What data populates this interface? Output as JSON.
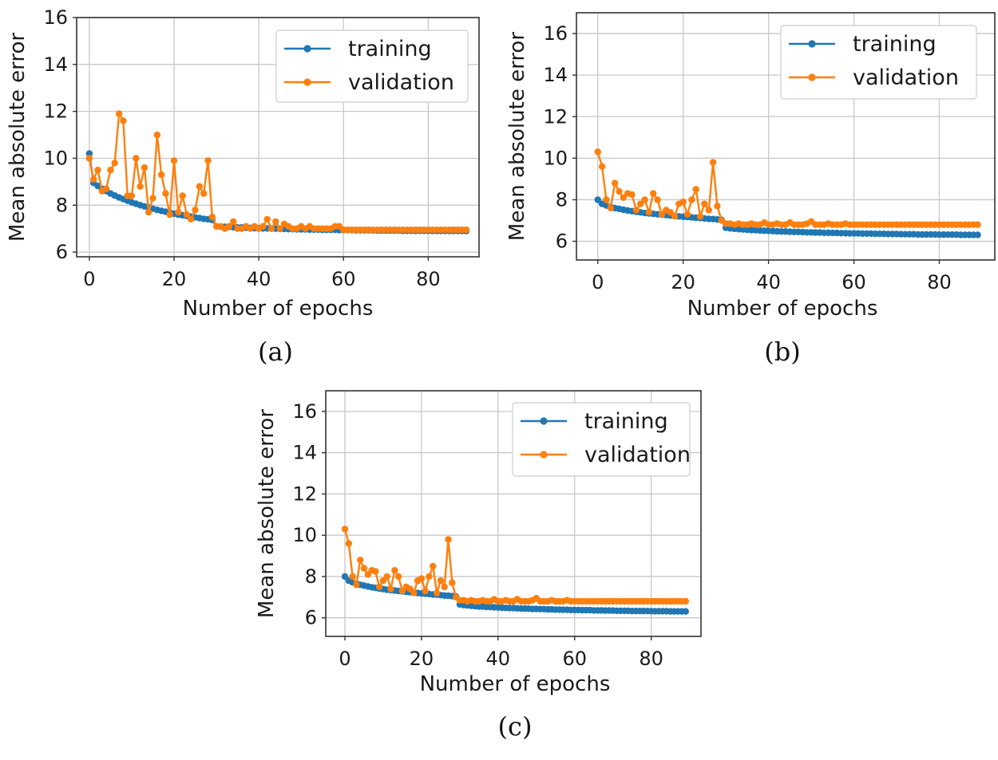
{
  "colors": {
    "training": "#1f77b4",
    "validation": "#ff7f0e"
  },
  "chart_data": [
    {
      "type": "line",
      "caption": "(a)",
      "xlabel": "Number of epochs",
      "ylabel": "Mean absolute error",
      "xlim": [
        -3,
        92
      ],
      "ylim": [
        5.8,
        16
      ],
      "xticks": [
        0,
        20,
        40,
        60,
        80
      ],
      "yticks": [
        6,
        8,
        10,
        12,
        14,
        16
      ],
      "legend": "top-right",
      "series": [
        {
          "name": "training",
          "color": "#1f77b4",
          "x_start": 0,
          "values": [
            10.2,
            8.95,
            8.82,
            8.7,
            8.6,
            8.5,
            8.41,
            8.33,
            8.26,
            8.19,
            8.12,
            8.06,
            8.0,
            7.95,
            7.9,
            7.85,
            7.8,
            7.76,
            7.72,
            7.68,
            7.64,
            7.6,
            7.57,
            7.54,
            7.51,
            7.48,
            7.45,
            7.42,
            7.4,
            7.37,
            7.1,
            7.09,
            7.08,
            7.07,
            7.06,
            7.05,
            7.05,
            7.04,
            7.03,
            7.02,
            7.02,
            7.01,
            7.01,
            7.0,
            7.0,
            6.99,
            6.99,
            6.98,
            6.98,
            6.97,
            6.97,
            6.97,
            6.96,
            6.96,
            6.96,
            6.95,
            6.95,
            6.95,
            6.95,
            6.94,
            6.94,
            6.94,
            6.94,
            6.93,
            6.93,
            6.93,
            6.93,
            6.93,
            6.92,
            6.92,
            6.92,
            6.92,
            6.92,
            6.92,
            6.91,
            6.91,
            6.91,
            6.91,
            6.91,
            6.91,
            6.91,
            6.9,
            6.9,
            6.9,
            6.9,
            6.9,
            6.9,
            6.9,
            6.9,
            6.9
          ]
        },
        {
          "name": "validation",
          "color": "#ff7f0e",
          "x_start": 0,
          "values": [
            10.0,
            9.1,
            9.5,
            8.6,
            8.7,
            9.5,
            9.8,
            11.9,
            11.6,
            8.4,
            8.4,
            10.0,
            8.8,
            9.6,
            7.7,
            8.3,
            11.0,
            9.3,
            8.5,
            7.6,
            9.9,
            7.7,
            8.4,
            7.6,
            7.4,
            7.8,
            8.8,
            8.5,
            9.9,
            7.5,
            7.1,
            7.1,
            7.0,
            7.1,
            7.3,
            7.0,
            7.0,
            7.1,
            7.0,
            7.1,
            7.0,
            7.1,
            7.4,
            7.0,
            7.3,
            7.0,
            7.2,
            7.1,
            7.0,
            7.0,
            7.1,
            7.0,
            7.1,
            7.0,
            7.0,
            7.0,
            7.0,
            7.0,
            7.1,
            7.1,
            6.95,
            6.95,
            6.95,
            6.95,
            6.95,
            6.95,
            6.95,
            6.95,
            6.95,
            6.95,
            6.95,
            6.95,
            6.95,
            6.95,
            6.95,
            6.95,
            6.95,
            6.95,
            6.95,
            6.95,
            6.95,
            6.95,
            6.95,
            6.95,
            6.95,
            6.95,
            6.95,
            6.95,
            6.95,
            6.95
          ]
        }
      ]
    },
    {
      "type": "line",
      "caption": "(b)",
      "xlabel": "Number of epochs",
      "ylabel": "Mean absolute error",
      "xlim": [
        -5,
        93
      ],
      "ylim": [
        5.1,
        17
      ],
      "xticks": [
        0,
        20,
        40,
        60,
        80
      ],
      "yticks": [
        6,
        8,
        10,
        12,
        14,
        16
      ],
      "legend": "top-right",
      "series": [
        {
          "name": "training",
          "color": "#1f77b4",
          "x_start": 0,
          "values": [
            8.0,
            7.8,
            7.72,
            7.66,
            7.6,
            7.56,
            7.52,
            7.48,
            7.45,
            7.42,
            7.39,
            7.36,
            7.34,
            7.32,
            7.3,
            7.28,
            7.26,
            7.24,
            7.22,
            7.2,
            7.18,
            7.17,
            7.15,
            7.13,
            7.12,
            7.1,
            7.08,
            7.07,
            7.05,
            7.03,
            6.65,
            6.62,
            6.6,
            6.58,
            6.57,
            6.55,
            6.54,
            6.53,
            6.52,
            6.51,
            6.5,
            6.49,
            6.48,
            6.47,
            6.47,
            6.46,
            6.45,
            6.45,
            6.44,
            6.43,
            6.43,
            6.42,
            6.42,
            6.41,
            6.41,
            6.4,
            6.4,
            6.39,
            6.39,
            6.38,
            6.38,
            6.38,
            6.37,
            6.37,
            6.37,
            6.36,
            6.36,
            6.36,
            6.35,
            6.35,
            6.35,
            6.34,
            6.34,
            6.34,
            6.34,
            6.33,
            6.33,
            6.33,
            6.33,
            6.33,
            6.32,
            6.32,
            6.32,
            6.32,
            6.32,
            6.31,
            6.31,
            6.31,
            6.31,
            6.31
          ]
        },
        {
          "name": "validation",
          "color": "#ff7f0e",
          "x_start": 0,
          "values": [
            10.3,
            9.6,
            8.0,
            7.6,
            8.8,
            8.4,
            8.1,
            8.3,
            8.25,
            7.5,
            7.8,
            8.0,
            7.4,
            8.3,
            8.0,
            7.3,
            7.5,
            7.4,
            7.2,
            7.8,
            7.9,
            7.3,
            8.0,
            8.5,
            7.2,
            7.8,
            7.5,
            9.8,
            7.7,
            7.0,
            6.85,
            6.85,
            6.8,
            6.85,
            6.8,
            6.8,
            6.85,
            6.8,
            6.8,
            6.9,
            6.8,
            6.8,
            6.85,
            6.8,
            6.8,
            6.9,
            6.8,
            6.8,
            6.8,
            6.85,
            6.95,
            6.8,
            6.8,
            6.8,
            6.85,
            6.8,
            6.8,
            6.8,
            6.85,
            6.8,
            6.8,
            6.8,
            6.8,
            6.8,
            6.8,
            6.8,
            6.8,
            6.8,
            6.8,
            6.8,
            6.8,
            6.8,
            6.8,
            6.8,
            6.8,
            6.8,
            6.8,
            6.8,
            6.8,
            6.8,
            6.8,
            6.8,
            6.8,
            6.8,
            6.8,
            6.8,
            6.8,
            6.8,
            6.8,
            6.8
          ]
        }
      ]
    },
    {
      "type": "line",
      "caption": "(c)",
      "xlabel": "Number of epochs",
      "ylabel": "Mean absolute error",
      "xlim": [
        -5,
        93
      ],
      "ylim": [
        5.1,
        17
      ],
      "xticks": [
        0,
        20,
        40,
        60,
        80
      ],
      "yticks": [
        6,
        8,
        10,
        12,
        14,
        16
      ],
      "legend": "top-right",
      "series": [
        {
          "name": "training",
          "color": "#1f77b4",
          "x_start": 0,
          "values": [
            8.0,
            7.8,
            7.72,
            7.66,
            7.6,
            7.56,
            7.52,
            7.48,
            7.45,
            7.42,
            7.39,
            7.36,
            7.34,
            7.32,
            7.3,
            7.28,
            7.26,
            7.24,
            7.22,
            7.2,
            7.18,
            7.17,
            7.15,
            7.13,
            7.12,
            7.1,
            7.08,
            7.07,
            7.05,
            7.03,
            6.65,
            6.62,
            6.6,
            6.58,
            6.57,
            6.55,
            6.54,
            6.53,
            6.52,
            6.51,
            6.5,
            6.49,
            6.48,
            6.47,
            6.47,
            6.46,
            6.45,
            6.45,
            6.44,
            6.43,
            6.43,
            6.42,
            6.42,
            6.41,
            6.41,
            6.4,
            6.4,
            6.39,
            6.39,
            6.38,
            6.38,
            6.38,
            6.37,
            6.37,
            6.37,
            6.36,
            6.36,
            6.36,
            6.35,
            6.35,
            6.35,
            6.34,
            6.34,
            6.34,
            6.34,
            6.33,
            6.33,
            6.33,
            6.33,
            6.33,
            6.32,
            6.32,
            6.32,
            6.32,
            6.32,
            6.31,
            6.31,
            6.31,
            6.31,
            6.31
          ]
        },
        {
          "name": "validation",
          "color": "#ff7f0e",
          "x_start": 0,
          "values": [
            10.3,
            9.6,
            8.0,
            7.6,
            8.8,
            8.4,
            8.1,
            8.3,
            8.25,
            7.5,
            7.8,
            8.0,
            7.4,
            8.3,
            8.0,
            7.3,
            7.5,
            7.4,
            7.2,
            7.8,
            7.9,
            7.3,
            8.0,
            8.5,
            7.2,
            7.8,
            7.5,
            9.8,
            7.7,
            7.0,
            6.85,
            6.85,
            6.8,
            6.85,
            6.8,
            6.8,
            6.85,
            6.8,
            6.8,
            6.9,
            6.8,
            6.8,
            6.85,
            6.8,
            6.8,
            6.9,
            6.8,
            6.8,
            6.8,
            6.85,
            6.95,
            6.8,
            6.8,
            6.8,
            6.85,
            6.8,
            6.8,
            6.8,
            6.85,
            6.8,
            6.8,
            6.8,
            6.8,
            6.8,
            6.8,
            6.8,
            6.8,
            6.8,
            6.8,
            6.8,
            6.8,
            6.8,
            6.8,
            6.8,
            6.8,
            6.8,
            6.8,
            6.8,
            6.8,
            6.8,
            6.8,
            6.8,
            6.8,
            6.8,
            6.8,
            6.8,
            6.8,
            6.8,
            6.8,
            6.8
          ]
        }
      ]
    }
  ]
}
